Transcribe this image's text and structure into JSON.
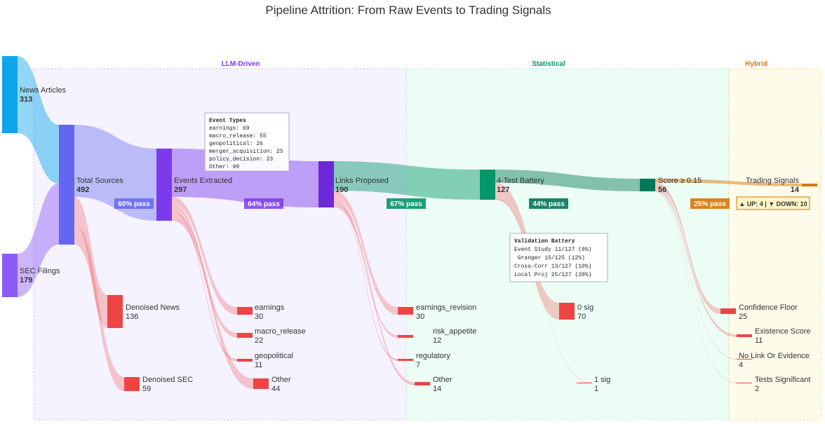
{
  "title": "Pipeline Attrition: From Raw Events to Trading Signals",
  "stages": [
    {
      "label": "LLM-Driven",
      "color": "#7c3aed"
    },
    {
      "label": "Statistical",
      "color": "#059669"
    },
    {
      "label": "Hybrid",
      "color": "#d97706"
    }
  ],
  "nodes": {
    "news": {
      "label": "News Articles",
      "value": "313"
    },
    "sec": {
      "label": "SEC Filings",
      "value": "179"
    },
    "total": {
      "label": "Total Sources",
      "value": "492"
    },
    "events": {
      "label": "Events Extracted",
      "value": "297"
    },
    "links": {
      "label": "Links Proposed",
      "value": "190"
    },
    "battery": {
      "label": "4-Test Battery",
      "value": "127"
    },
    "score": {
      "label": "Score ≥ 0.15",
      "value": "56"
    },
    "signals": {
      "label": "Trading Signals",
      "value": "14"
    },
    "denoised_news": {
      "label": "Denoised News",
      "value": "136"
    },
    "denoised_sec": {
      "label": "Denoised SEC",
      "value": "59"
    },
    "ev_earnings": {
      "label": "earnings",
      "value": "30"
    },
    "ev_macro": {
      "label": "macro_release",
      "value": "22"
    },
    "ev_geo": {
      "label": "geopolitical",
      "value": "11"
    },
    "ev_other": {
      "label": "Other",
      "value": "44"
    },
    "lk_earn_rev": {
      "label": "earnings_revision",
      "value": "30"
    },
    "lk_risk": {
      "label": "risk_appetite",
      "value": "12"
    },
    "lk_reg": {
      "label": "regulatory",
      "value": "7"
    },
    "lk_other": {
      "label": "Other",
      "value": "14"
    },
    "sig0": {
      "label": "0 sig",
      "value": "70"
    },
    "sig1": {
      "label": "1 sig",
      "value": "1"
    },
    "conf_floor": {
      "label": "Confidence Floor",
      "value": "25"
    },
    "exist_score": {
      "label": "Existence Score",
      "value": "11"
    },
    "no_link": {
      "label": "No Link Or Evidence",
      "value": "4"
    },
    "tests_sig": {
      "label": "Tests Significant",
      "value": "2"
    }
  },
  "pass_badges": [
    {
      "text": "60% pass",
      "color": "#6366f1"
    },
    {
      "text": "64% pass",
      "color": "#7c3aed"
    },
    {
      "text": "67% pass",
      "color": "#059669"
    },
    {
      "text": "44% pass",
      "color": "#047857"
    },
    {
      "text": "25% pass",
      "color": "#d97706"
    }
  ],
  "signal_badge": "▲ UP: 4 | ▼ DOWN: 10",
  "event_types_box": {
    "title": "Event Types",
    "lines": [
      "earnings: 69",
      "macro_release: 55",
      "geopolitical: 26",
      "merger_acquisition: 25",
      "policy_decision: 23",
      "Other: 99"
    ]
  },
  "validation_box": {
    "title": "Validation Battery",
    "lines": [
      "Event Study 11/127 (9%)",
      " Granger 15/125 (12%)",
      "Cross-Corr 13/127 (10%)",
      "Local Proj 25/127 (20%)"
    ]
  },
  "colors": {
    "news": "#0ea5e9",
    "sec": "#8b5cf6",
    "total": "#6366f1",
    "events": "#7c3aed",
    "links": "#6d28d9",
    "battery": "#059669",
    "score": "#047857",
    "signals": "#d97706",
    "drop": "#ef4444"
  }
}
